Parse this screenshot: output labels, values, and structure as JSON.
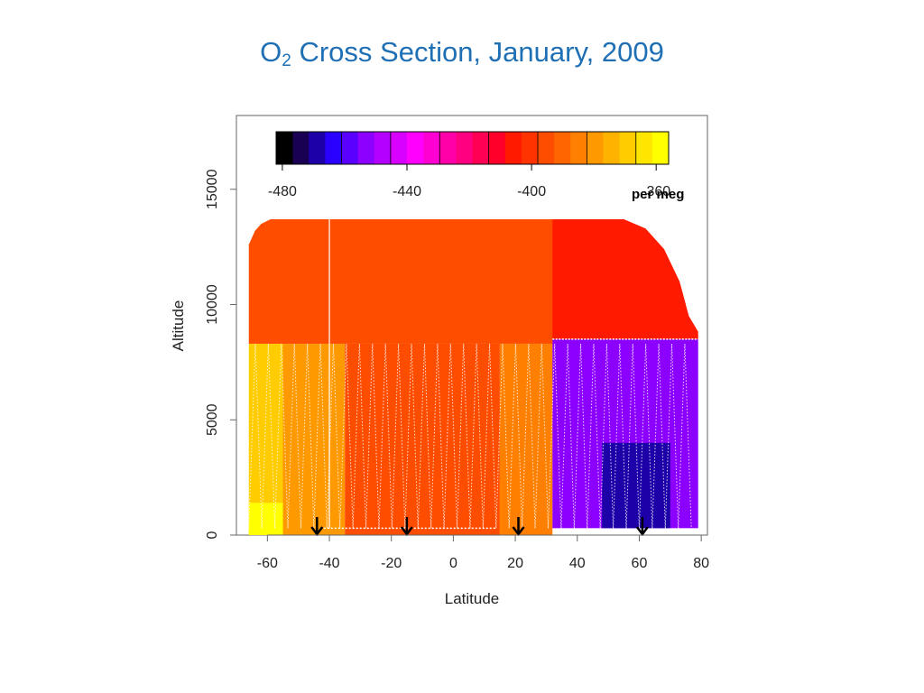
{
  "slide": {
    "title_prefix": "O",
    "title_subscript": "2",
    "title_rest": " Cross Section, January, 2009"
  },
  "chart_data": {
    "type": "heatmap",
    "title": "O2 Cross Section, January, 2009",
    "xlabel": "Latitude",
    "ylabel": "Altitude",
    "xlim": [
      -70,
      82
    ],
    "ylim": [
      0,
      18200
    ],
    "x_ticks": [
      -60,
      -40,
      -20,
      0,
      20,
      40,
      60,
      80
    ],
    "y_ticks": [
      0,
      5000,
      10000,
      15000
    ],
    "colorbar": {
      "unit_label": "per meg",
      "range": [
        -482,
        -356
      ],
      "ticks": [
        -480,
        -440,
        -400,
        -360
      ],
      "colors": [
        "#000000",
        "#1a0052",
        "#1e00a8",
        "#2a00ff",
        "#5a00ff",
        "#8c00ff",
        "#b400ff",
        "#d800ff",
        "#ff00ff",
        "#ff00d2",
        "#ff00a8",
        "#ff0080",
        "#ff0055",
        "#ff002b",
        "#ff1a00",
        "#ff3300",
        "#ff4d00",
        "#ff6600",
        "#ff8000",
        "#ff9900",
        "#ffb300",
        "#ffcc00",
        "#ffe600",
        "#ffff00"
      ]
    },
    "data_envelope_top": [
      {
        "lat": -66,
        "alt": 12600
      },
      {
        "lat": -64,
        "alt": 13200
      },
      {
        "lat": -62,
        "alt": 13500
      },
      {
        "lat": -59,
        "alt": 13700
      },
      {
        "lat": 55,
        "alt": 13700
      },
      {
        "lat": 62,
        "alt": 13300
      },
      {
        "lat": 68,
        "alt": 12400
      },
      {
        "lat": 73,
        "alt": 11000
      },
      {
        "lat": 76,
        "alt": 9500
      },
      {
        "lat": 80,
        "alt": 8600
      }
    ],
    "regions": [
      {
        "lat": [
          -68,
          -55
        ],
        "alt": [
          0,
          8300
        ],
        "value": -370
      },
      {
        "lat": [
          -68,
          -55
        ],
        "alt": [
          0,
          1400
        ],
        "value": -360
      },
      {
        "lat": [
          -55,
          -35
        ],
        "alt": [
          0,
          8300
        ],
        "value": -380
      },
      {
        "lat": [
          -35,
          15
        ],
        "alt": [
          0,
          8300
        ],
        "value": -393
      },
      {
        "lat": [
          15,
          32
        ],
        "alt": [
          0,
          8300
        ],
        "value": -385
      },
      {
        "lat": [
          -68,
          75
        ],
        "alt": [
          8300,
          13700
        ],
        "value": -395
      },
      {
        "lat": [
          32,
          79
        ],
        "alt": [
          300,
          8500
        ],
        "value": -455
      },
      {
        "lat": [
          48,
          70
        ],
        "alt": [
          300,
          4000
        ],
        "value": -470
      },
      {
        "lat": [
          32,
          79
        ],
        "alt": [
          8500,
          13700
        ],
        "value": -405
      }
    ],
    "flight_markers_lat": [
      -44,
      -15,
      21,
      61
    ]
  }
}
